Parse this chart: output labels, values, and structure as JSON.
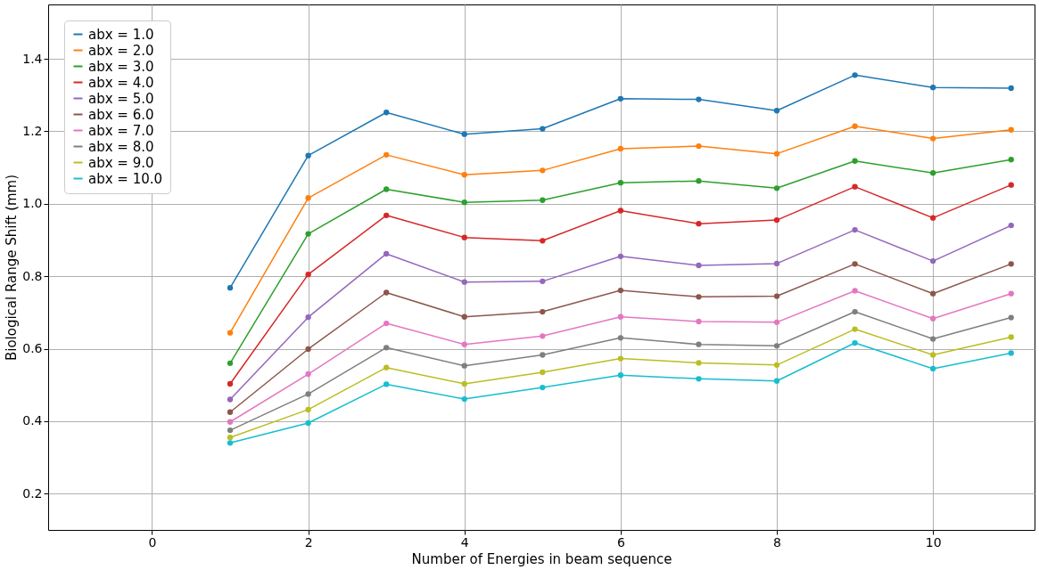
{
  "chart_data": {
    "type": "line",
    "xlabel": "Number of Energies in beam sequence",
    "ylabel": "Biological Range Shift (mm)",
    "x": [
      1,
      2,
      3,
      4,
      5,
      6,
      7,
      8,
      9,
      10,
      11
    ],
    "xlim": [
      -1.33,
      11.3
    ],
    "xticks": [
      0,
      2,
      4,
      6,
      8,
      10
    ],
    "ylim": [
      0.1,
      1.55
    ],
    "yticks": [
      0.2,
      0.4,
      0.6,
      0.8,
      {
        "value": 1,
        "label": "1.0"
      },
      1.2,
      1.4
    ],
    "grid": true,
    "legend": "top left",
    "marker": "circle",
    "line_style": "solid",
    "series": [
      {
        "name": "abx = 1.0",
        "color": "#1f77b4",
        "values": [
          0.768,
          1.133,
          1.252,
          1.192,
          1.207,
          1.29,
          1.288,
          1.257,
          1.355,
          1.321,
          1.319
        ]
      },
      {
        "name": "abx = 2.0",
        "color": "#ff7f0e",
        "values": [
          0.644,
          1.016,
          1.135,
          1.08,
          1.092,
          1.152,
          1.159,
          1.138,
          1.214,
          1.18,
          1.204
        ]
      },
      {
        "name": "abx = 3.0",
        "color": "#2ca02c",
        "values": [
          0.56,
          0.917,
          1.04,
          1.004,
          1.01,
          1.058,
          1.063,
          1.043,
          1.118,
          1.085,
          1.122
        ]
      },
      {
        "name": "abx = 4.0",
        "color": "#d62728",
        "values": [
          0.503,
          0.805,
          0.968,
          0.907,
          0.898,
          0.981,
          0.945,
          0.955,
          1.047,
          0.961,
          1.052
        ]
      },
      {
        "name": "abx = 5.0",
        "color": "#9467bd",
        "values": [
          0.46,
          0.687,
          0.862,
          0.784,
          0.786,
          0.855,
          0.83,
          0.835,
          0.928,
          0.842,
          0.94
        ]
      },
      {
        "name": "abx = 6.0",
        "color": "#8c564b",
        "values": [
          0.425,
          0.599,
          0.755,
          0.688,
          0.702,
          0.761,
          0.743,
          0.745,
          0.834,
          0.752,
          0.834
        ]
      },
      {
        "name": "abx = 7.0",
        "color": "#e377c2",
        "values": [
          0.398,
          0.53,
          0.67,
          0.612,
          0.635,
          0.688,
          0.675,
          0.673,
          0.76,
          0.683,
          0.752
        ]
      },
      {
        "name": "abx = 8.0",
        "color": "#7f7f7f",
        "values": [
          0.375,
          0.475,
          0.603,
          0.553,
          0.583,
          0.63,
          0.612,
          0.608,
          0.702,
          0.627,
          0.686
        ]
      },
      {
        "name": "abx = 9.0",
        "color": "#bcbd22",
        "values": [
          0.355,
          0.432,
          0.548,
          0.503,
          0.535,
          0.573,
          0.561,
          0.555,
          0.654,
          0.583,
          0.632
        ]
      },
      {
        "name": "abx = 10.0",
        "color": "#17becf",
        "values": [
          0.34,
          0.395,
          0.502,
          0.461,
          0.493,
          0.527,
          0.517,
          0.511,
          0.616,
          0.545,
          0.588
        ]
      }
    ]
  }
}
